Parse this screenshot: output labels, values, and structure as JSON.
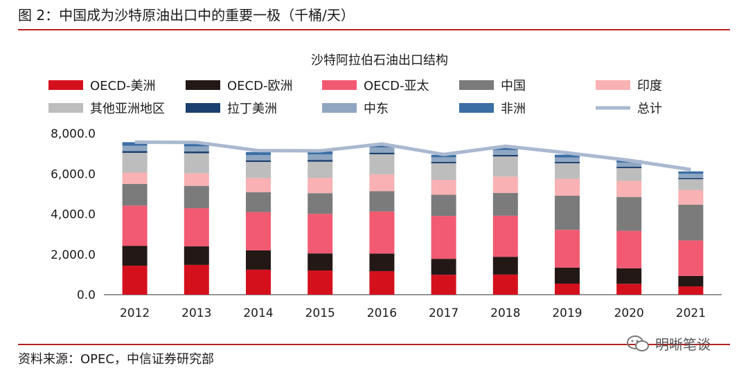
{
  "figure_title": "图 2：中国成为沙特原油出口中的重要一极（千桶/天）",
  "source": "资料来源：OPEC，中信证券研究部",
  "watermark": "明晰笔谈",
  "chart_data": {
    "type": "bar",
    "stacked": true,
    "title": "沙特阿拉伯石油出口结构",
    "categories": [
      "2012",
      "2013",
      "2014",
      "2015",
      "2016",
      "2017",
      "2018",
      "2019",
      "2020",
      "2021"
    ],
    "ylim": [
      0,
      8000
    ],
    "yticks": [
      "0.0",
      "2,000.0",
      "4,000.0",
      "6,000.0",
      "8,000.0"
    ],
    "ytick_values": [
      0,
      2000,
      4000,
      6000,
      8000
    ],
    "legend_position": "top",
    "series": [
      {
        "name": "OECD-美洲",
        "color": "#d5101d",
        "values": [
          1440,
          1480,
          1240,
          1200,
          1170,
          990,
          1000,
          550,
          540,
          410
        ]
      },
      {
        "name": "OECD-欧洲",
        "color": "#231815",
        "values": [
          980,
          920,
          960,
          850,
          870,
          790,
          880,
          790,
          770,
          520
        ]
      },
      {
        "name": "OECD-亚太",
        "color": "#f25a72",
        "values": [
          2000,
          1890,
          1900,
          1960,
          2090,
          2130,
          2040,
          1880,
          1860,
          1760
        ]
      },
      {
        "name": "中国",
        "color": "#7b7b7b",
        "values": [
          1080,
          1110,
          990,
          1030,
          1010,
          1050,
          1130,
          1690,
          1680,
          1780
        ]
      },
      {
        "name": "印度",
        "color": "#f9b1b3",
        "values": [
          560,
          620,
          700,
          760,
          830,
          740,
          810,
          840,
          800,
          730
        ]
      },
      {
        "name": "其他亚洲地区",
        "color": "#bdbdbd",
        "values": [
          980,
          1000,
          800,
          800,
          1000,
          820,
          1000,
          770,
          630,
          530
        ]
      },
      {
        "name": "拉丁美洲",
        "color": "#1b3f6e",
        "values": [
          90,
          90,
          80,
          90,
          80,
          70,
          80,
          70,
          70,
          60
        ]
      },
      {
        "name": "中东",
        "color": "#8fa6c1",
        "values": [
          260,
          250,
          260,
          270,
          260,
          230,
          240,
          220,
          210,
          210
        ]
      },
      {
        "name": "非洲",
        "color": "#3a6ea5",
        "values": [
          180,
          180,
          150,
          150,
          160,
          120,
          150,
          140,
          120,
          120
        ]
      },
      {
        "name": "总计",
        "type": "line",
        "color": "#aab9d0",
        "values": [
          7570,
          7560,
          7150,
          7140,
          7480,
          6960,
          7370,
          7040,
          6670,
          6210
        ]
      }
    ]
  }
}
